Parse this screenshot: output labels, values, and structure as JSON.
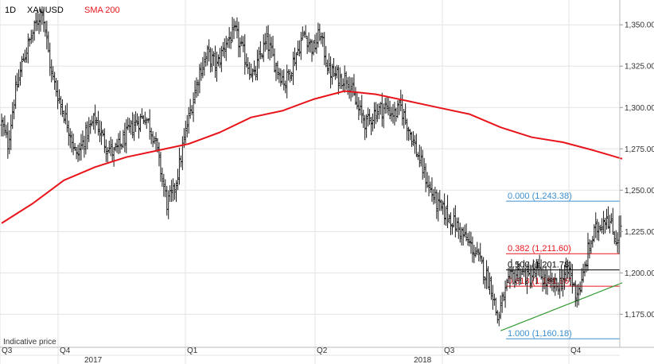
{
  "header": {
    "timeframe": "1D",
    "symbol": "XAUUSD",
    "indicator": "SMA 200"
  },
  "footer_note": "Indicative price",
  "colors": {
    "price_bar": "#1a1a1a",
    "sma": "#e8141b",
    "grid": "#e3e3e3",
    "fib_blue": "#3a8fd0",
    "fib_red": "#e8141b",
    "fib_black": "#000000",
    "trendline": "#2e9a2e",
    "axis_text": "#333333",
    "header_red": "#e8141b"
  },
  "chart_data": {
    "type": "ohlc-bar",
    "title": "",
    "xlabel": "",
    "ylabel": "",
    "ylim": [
      1155,
      1365
    ],
    "grid": true,
    "y_axis_position": "right",
    "y_ticks": [
      {
        "value": 1175,
        "label": "1,175.000"
      },
      {
        "value": 1200,
        "label": "1,200.000"
      },
      {
        "value": 1225,
        "label": "1,225.000"
      },
      {
        "value": 1250,
        "label": "1,250.000"
      },
      {
        "value": 1275,
        "label": "1,275.000"
      },
      {
        "value": 1300,
        "label": "1,300.000"
      },
      {
        "value": 1325,
        "label": "1,325.000"
      },
      {
        "value": 1350,
        "label": "1,350.000"
      }
    ],
    "quarter_labels": [
      "Q3",
      "Q4",
      "Q1",
      "Q2",
      "Q3",
      "Q4"
    ],
    "year_labels": [
      "2017",
      "2018"
    ],
    "price_anchors": [
      [
        0,
        1290
      ],
      [
        4,
        1278
      ],
      [
        8,
        1305
      ],
      [
        14,
        1330
      ],
      [
        20,
        1345
      ],
      [
        26,
        1360
      ],
      [
        32,
        1320
      ],
      [
        38,
        1302
      ],
      [
        44,
        1285
      ],
      [
        48,
        1270
      ],
      [
        54,
        1283
      ],
      [
        60,
        1293
      ],
      [
        66,
        1279
      ],
      [
        72,
        1272
      ],
      [
        78,
        1280
      ],
      [
        85,
        1290
      ],
      [
        92,
        1295
      ],
      [
        98,
        1282
      ],
      [
        102,
        1262
      ],
      [
        106,
        1242
      ],
      [
        110,
        1248
      ],
      [
        114,
        1265
      ],
      [
        118,
        1285
      ],
      [
        122,
        1302
      ],
      [
        127,
        1322
      ],
      [
        132,
        1332
      ],
      [
        138,
        1325
      ],
      [
        144,
        1340
      ],
      [
        150,
        1345
      ],
      [
        156,
        1330
      ],
      [
        162,
        1318
      ],
      [
        166,
        1332
      ],
      [
        170,
        1340
      ],
      [
        176,
        1325
      ],
      [
        182,
        1315
      ],
      [
        188,
        1330
      ],
      [
        194,
        1345
      ],
      [
        200,
        1335
      ],
      [
        204,
        1345
      ],
      [
        210,
        1322
      ],
      [
        216,
        1318
      ],
      [
        222,
        1318
      ],
      [
        228,
        1300
      ],
      [
        234,
        1290
      ],
      [
        240,
        1298
      ],
      [
        246,
        1300
      ],
      [
        252,
        1296
      ],
      [
        256,
        1300
      ],
      [
        262,
        1285
      ],
      [
        268,
        1268
      ],
      [
        274,
        1252
      ],
      [
        280,
        1240
      ],
      [
        286,
        1235
      ],
      [
        292,
        1228
      ],
      [
        298,
        1220
      ],
      [
        304,
        1212
      ],
      [
        310,
        1200
      ],
      [
        314,
        1192
      ],
      [
        318,
        1172
      ],
      [
        322,
        1186
      ],
      [
        326,
        1196
      ],
      [
        332,
        1201
      ],
      [
        338,
        1197
      ],
      [
        344,
        1201
      ],
      [
        350,
        1193
      ],
      [
        356,
        1192
      ],
      [
        360,
        1197
      ],
      [
        364,
        1201
      ],
      [
        368,
        1188
      ],
      [
        372,
        1193
      ],
      [
        376,
        1213
      ],
      [
        380,
        1224
      ],
      [
        384,
        1230
      ],
      [
        388,
        1235
      ],
      [
        392,
        1225
      ],
      [
        394,
        1220
      ],
      [
        398,
        1232
      ]
    ],
    "sma200": [
      [
        0,
        1230
      ],
      [
        20,
        1242
      ],
      [
        40,
        1256
      ],
      [
        60,
        1264
      ],
      [
        80,
        1270
      ],
      [
        100,
        1274
      ],
      [
        120,
        1278
      ],
      [
        140,
        1285
      ],
      [
        160,
        1294
      ],
      [
        180,
        1298
      ],
      [
        200,
        1305
      ],
      [
        220,
        1310
      ],
      [
        240,
        1308
      ],
      [
        260,
        1304
      ],
      [
        280,
        1300
      ],
      [
        300,
        1296
      ],
      [
        320,
        1288
      ],
      [
        340,
        1282
      ],
      [
        360,
        1279
      ],
      [
        380,
        1274
      ],
      [
        398,
        1269
      ]
    ],
    "fibonacci": [
      {
        "ratio_label": "0.000",
        "value_label": "(1,243.38)",
        "price": 1243.38,
        "color": "#3a8fd0"
      },
      {
        "ratio_label": "0.382",
        "value_label": "(1,211.60)",
        "price": 1211.6,
        "color": "#e8141b"
      },
      {
        "ratio_label": "0.500",
        "value_label": "(1,201.78)",
        "price": 1201.78,
        "color": "#000000"
      },
      {
        "ratio_label": "0.618",
        "value_label": "(1,191.96)",
        "price": 1191.96,
        "color": "#e8141b"
      },
      {
        "ratio_label": "1.000",
        "value_label": "(1,160.18)",
        "price": 1160.18,
        "color": "#3a8fd0"
      }
    ],
    "trendline": {
      "from": [
        320,
        1165
      ],
      "to": [
        398,
        1194
      ]
    }
  }
}
